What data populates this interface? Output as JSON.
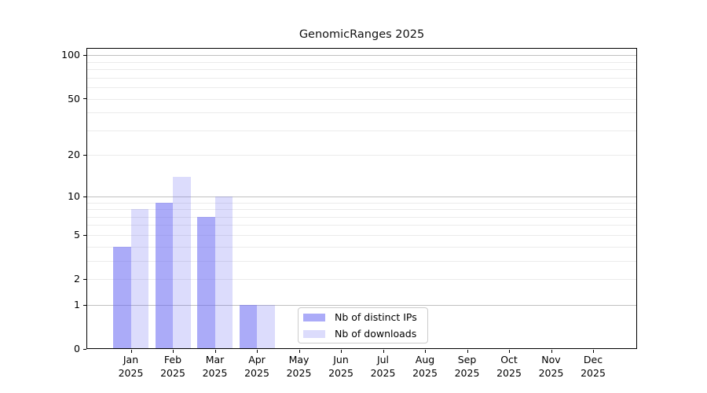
{
  "title": "GenomicRanges 2025",
  "colors": {
    "series": [
      "rgba(102,102,242,0.55)",
      "rgba(102,102,242,0.23)"
    ],
    "grid_major": "#c0c0c0",
    "grid_minor": "#ebebeb",
    "axis_frame": "#000000",
    "legend_border": "#cccccc"
  },
  "legend": {
    "items": [
      {
        "label": "Nb of distinct IPs"
      },
      {
        "label": "Nb of downloads"
      }
    ]
  },
  "chart_data": {
    "type": "bar",
    "title": "GenomicRanges 2025",
    "categories": [
      "Jan",
      "Feb",
      "Mar",
      "Apr",
      "May",
      "Jun",
      "Jul",
      "Aug",
      "Sep",
      "Oct",
      "Nov",
      "Dec"
    ],
    "x_tick_year": "2025",
    "series": [
      {
        "name": "Nb of distinct IPs",
        "values": [
          4,
          9,
          7,
          1,
          0,
          0,
          0,
          0,
          0,
          0,
          0,
          0
        ]
      },
      {
        "name": "Nb of downloads",
        "values": [
          8,
          14,
          10,
          1,
          0,
          0,
          0,
          0,
          0,
          0,
          0,
          0
        ]
      }
    ],
    "y_scale": "log10(1+x)",
    "y_tick_values": [
      0,
      1,
      2,
      5,
      10,
      20,
      50,
      100
    ],
    "grid_major_values": [
      1,
      10,
      100
    ],
    "grid_minor_values": [
      2,
      3,
      4,
      5,
      6,
      7,
      8,
      9,
      20,
      30,
      40,
      50,
      60,
      70,
      80,
      90
    ],
    "ylim": [
      0,
      112
    ],
    "grid": "on",
    "legend_position": "lower-center"
  }
}
